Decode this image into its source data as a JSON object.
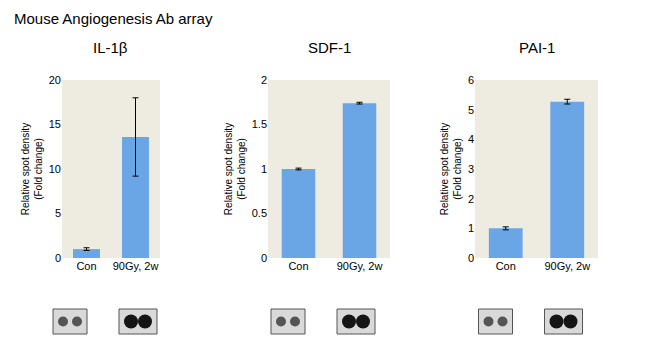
{
  "title": "Mouse Angiogenesis Ab array",
  "chart_data": [
    {
      "type": "bar",
      "title": "IL-1β",
      "categories": [
        "Con",
        "90Gy, 2w"
      ],
      "values": [
        1.0,
        13.6
      ],
      "errors": [
        0.15,
        4.4
      ],
      "color": "#6aa6e6",
      "y_label": [
        "Relative spot density",
        "(Fold change)"
      ],
      "ylim": [
        0,
        20
      ],
      "yticks": [
        0,
        5,
        10,
        15,
        20
      ],
      "grid": false
    },
    {
      "type": "bar",
      "title": "SDF-1",
      "categories": [
        "Con",
        "90Gy, 2w"
      ],
      "values": [
        1.0,
        1.74
      ],
      "errors": [
        0.01,
        0.01
      ],
      "color": "#6aa6e6",
      "y_label": [
        "Relative spot density",
        "(Fold change)"
      ],
      "ylim": [
        0,
        2
      ],
      "yticks": [
        0,
        0.5,
        1,
        1.5,
        2
      ],
      "grid": false
    },
    {
      "type": "bar",
      "title": "PAI-1",
      "categories": [
        "Con",
        "90Gy, 2w"
      ],
      "values": [
        1.0,
        5.27
      ],
      "errors": [
        0.05,
        0.08
      ],
      "color": "#6aa6e6",
      "y_label": [
        "Relative spot density",
        "(Fold change)"
      ],
      "ylim": [
        0,
        6
      ],
      "yticks": [
        0,
        1,
        2,
        3,
        4,
        5,
        6
      ],
      "grid": false
    }
  ]
}
